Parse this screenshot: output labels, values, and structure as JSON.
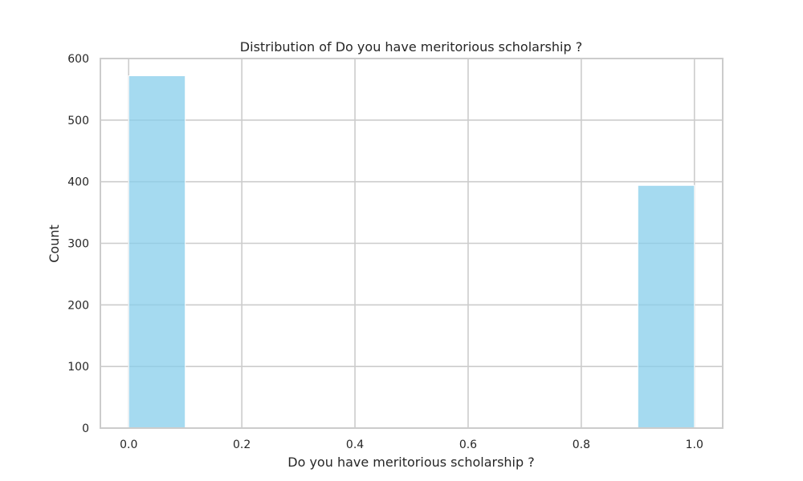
{
  "chart_data": {
    "type": "bar",
    "title": "Distribution of Do you have meritorious scholarship ?",
    "xlabel": "Do you have meritorious scholarship ?",
    "ylabel": "Count",
    "xlim": [
      -0.05,
      1.05
    ],
    "ylim": [
      0,
      600
    ],
    "x_ticks": [
      0.0,
      0.2,
      0.4,
      0.6,
      0.8,
      1.0
    ],
    "x_tick_labels": [
      "0.0",
      "0.2",
      "0.4",
      "0.6",
      "0.8",
      "1.0"
    ],
    "y_ticks": [
      0,
      100,
      200,
      300,
      400,
      500,
      600
    ],
    "y_tick_labels": [
      "0",
      "100",
      "200",
      "300",
      "400",
      "500",
      "600"
    ],
    "bins": [
      {
        "x0": 0.0,
        "x1": 0.1,
        "value": 572
      },
      {
        "x0": 0.1,
        "x1": 0.2,
        "value": 0
      },
      {
        "x0": 0.2,
        "x1": 0.3,
        "value": 0
      },
      {
        "x0": 0.3,
        "x1": 0.4,
        "value": 0
      },
      {
        "x0": 0.4,
        "x1": 0.5,
        "value": 0
      },
      {
        "x0": 0.5,
        "x1": 0.6,
        "value": 0
      },
      {
        "x0": 0.6,
        "x1": 0.7,
        "value": 0
      },
      {
        "x0": 0.7,
        "x1": 0.8,
        "value": 0
      },
      {
        "x0": 0.8,
        "x1": 0.9,
        "value": 0
      },
      {
        "x0": 0.9,
        "x1": 1.0,
        "value": 394
      }
    ],
    "grid": true,
    "colors": {
      "bar": "#87ceeb",
      "grid": "#cccccc",
      "spine": "#cccccc",
      "text": "#262626"
    }
  }
}
